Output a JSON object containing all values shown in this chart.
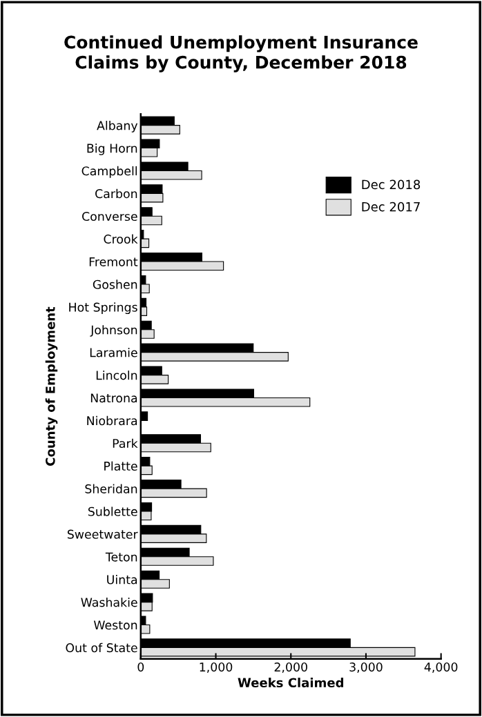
{
  "chart_data": {
    "type": "bar",
    "orientation": "horizontal",
    "title": "Continued Unemployment Insurance\nClaims by County, December 2018",
    "xlabel": "Weeks Claimed",
    "ylabel": "County of Employment",
    "categories": [
      "Albany",
      "Big Horn",
      "Campbell",
      "Carbon",
      "Converse",
      "Crook",
      "Fremont",
      "Goshen",
      "Hot Springs",
      "Johnson",
      "Laramie",
      "Lincoln",
      "Natrona",
      "Niobrara",
      "Park",
      "Platte",
      "Sheridan",
      "Sublette",
      "Sweetwater",
      "Teton",
      "Uinta",
      "Washakie",
      "Weston",
      "Out of State"
    ],
    "series": [
      {
        "name": "Dec 2018",
        "color": "#000000",
        "values": [
          446,
          249,
          628,
          286,
          151,
          37,
          815,
          65,
          71,
          141,
          1499,
          280,
          1505,
          90,
          797,
          120,
          536,
          145,
          800,
          646,
          246,
          157,
          65,
          2791
        ]
      },
      {
        "name": "Dec 2017",
        "color": "#e0e0e0",
        "values": [
          520,
          219,
          812,
          295,
          280,
          108,
          1102,
          114,
          80,
          178,
          1964,
          366,
          2253,
          null,
          933,
          151,
          877,
          139,
          874,
          967,
          382,
          151,
          120,
          3653
        ]
      }
    ],
    "xlim": [
      0,
      4000
    ],
    "xticks": [
      {
        "value": 0,
        "label": "0"
      },
      {
        "value": 1000,
        "label": "1,000"
      },
      {
        "value": 2000,
        "label": "2,000"
      },
      {
        "value": 3000,
        "label": "3,000"
      },
      {
        "value": 4000,
        "label": "4,000"
      }
    ],
    "grid": false,
    "legend": "top right"
  }
}
